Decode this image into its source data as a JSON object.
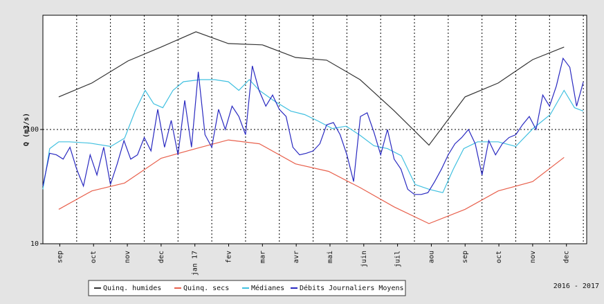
{
  "chart_data": {
    "type": "line",
    "ylabel": "Q (m3/s)",
    "annotation": "2016 - 2017",
    "log_y": true,
    "ylim": [
      10,
      1000
    ],
    "yticks": [
      10,
      100
    ],
    "xlim": [
      0,
      16.1
    ],
    "xticks": [
      {
        "value": 0.5,
        "label": "sep"
      },
      {
        "value": 1.5,
        "label": "oct"
      },
      {
        "value": 2.5,
        "label": "nov"
      },
      {
        "value": 3.5,
        "label": "dec"
      },
      {
        "value": 4.5,
        "label": "jan 17"
      },
      {
        "value": 5.5,
        "label": "fev"
      },
      {
        "value": 6.5,
        "label": "mar"
      },
      {
        "value": 7.5,
        "label": "avr"
      },
      {
        "value": 8.5,
        "label": "mai"
      },
      {
        "value": 9.5,
        "label": "juin"
      },
      {
        "value": 10.5,
        "label": "juil"
      },
      {
        "value": 11.5,
        "label": "aou"
      },
      {
        "value": 12.5,
        "label": "sep"
      },
      {
        "value": 13.5,
        "label": "oct"
      },
      {
        "value": 14.5,
        "label": "nov"
      },
      {
        "value": 15.5,
        "label": "dec"
      }
    ],
    "xgrid": [
      1,
      2,
      3,
      4,
      5,
      6,
      7,
      8,
      9,
      10,
      11,
      12,
      13,
      14,
      15,
      16
    ],
    "ygrid": [
      100
    ],
    "series": [
      {
        "name": "Quinq. humides",
        "color": "#333333",
        "x": [
          0.47,
          1.45,
          2.52,
          3.5,
          4.53,
          5.49,
          6.5,
          7.48,
          8.4,
          9.39,
          10.4,
          11.43,
          12.5,
          13.48,
          14.5,
          15.43
        ],
        "values": [
          193,
          255,
          398,
          527,
          716,
          565,
          550,
          427,
          404,
          273,
          146,
          73,
          193,
          255,
          409,
          527
        ]
      },
      {
        "name": "Quinq. secs",
        "color": "#e8604c",
        "x": [
          0.47,
          1.45,
          2.42,
          3.5,
          4.53,
          5.49,
          6.41,
          7.48,
          8.46,
          9.39,
          10.4,
          11.43,
          12.5,
          13.48,
          14.5,
          15.43
        ],
        "values": [
          20,
          29,
          34,
          56,
          68,
          81,
          75,
          50,
          43,
          31,
          21,
          15,
          20,
          29,
          35,
          57
        ]
      },
      {
        "name": "Médianes",
        "color": "#40c0e0",
        "x": [
          0,
          0.2,
          0.47,
          0.78,
          1.39,
          2.01,
          2.42,
          2.73,
          3.03,
          3.28,
          3.55,
          3.85,
          4.16,
          4.67,
          5.08,
          5.49,
          5.8,
          6.11,
          6.41,
          6.82,
          7.34,
          7.75,
          8.16,
          8.57,
          8.98,
          9.39,
          9.8,
          10.2,
          10.61,
          11.02,
          11.43,
          11.84,
          12.15,
          12.46,
          12.87,
          13.48,
          14.0,
          14.51,
          15.02,
          15.43,
          15.74,
          16.0
        ],
        "values": [
          30,
          68,
          78,
          78,
          76,
          71,
          84,
          145,
          220,
          168,
          155,
          220,
          262,
          273,
          273,
          262,
          220,
          273,
          220,
          180,
          145,
          135,
          118,
          102,
          107,
          89,
          72,
          68,
          59,
          33,
          30,
          28,
          45,
          68,
          78,
          78,
          71,
          102,
          135,
          220,
          155,
          145
        ]
      },
      {
        "name": "Débits Journaliers Moyens",
        "color": "#2828c0",
        "x": [
          0,
          0.2,
          0.4,
          0.6,
          0.8,
          1,
          1.2,
          1.4,
          1.6,
          1.8,
          2,
          2.2,
          2.4,
          2.6,
          2.8,
          3,
          3.2,
          3.4,
          3.6,
          3.8,
          4,
          4.2,
          4.4,
          4.6,
          4.8,
          5,
          5.2,
          5.4,
          5.6,
          5.8,
          6,
          6.2,
          6.4,
          6.6,
          6.8,
          7,
          7.2,
          7.4,
          7.6,
          7.8,
          8,
          8.2,
          8.4,
          8.6,
          8.8,
          9,
          9.2,
          9.4,
          9.6,
          9.8,
          10,
          10.2,
          10.4,
          10.6,
          10.8,
          11,
          11.2,
          11.4,
          11.6,
          11.8,
          12,
          12.2,
          12.4,
          12.6,
          12.8,
          13,
          13.2,
          13.4,
          13.6,
          13.8,
          14,
          14.2,
          14.4,
          14.6,
          14.8,
          15,
          15.2,
          15.4,
          15.6,
          15.8,
          16
        ],
        "values": [
          32,
          62,
          60,
          55,
          70,
          45,
          32,
          60,
          40,
          70,
          33,
          50,
          80,
          55,
          60,
          85,
          65,
          150,
          70,
          120,
          60,
          180,
          70,
          320,
          90,
          70,
          150,
          100,
          160,
          130,
          90,
          360,
          220,
          160,
          200,
          150,
          130,
          70,
          60,
          62,
          65,
          75,
          110,
          115,
          90,
          60,
          35,
          130,
          140,
          95,
          60,
          100,
          55,
          45,
          30,
          27,
          27,
          28,
          35,
          45,
          60,
          75,
          85,
          100,
          75,
          40,
          80,
          60,
          75,
          85,
          90,
          110,
          130,
          100,
          200,
          160,
          240,
          420,
          350,
          160,
          260
        ]
      }
    ]
  }
}
